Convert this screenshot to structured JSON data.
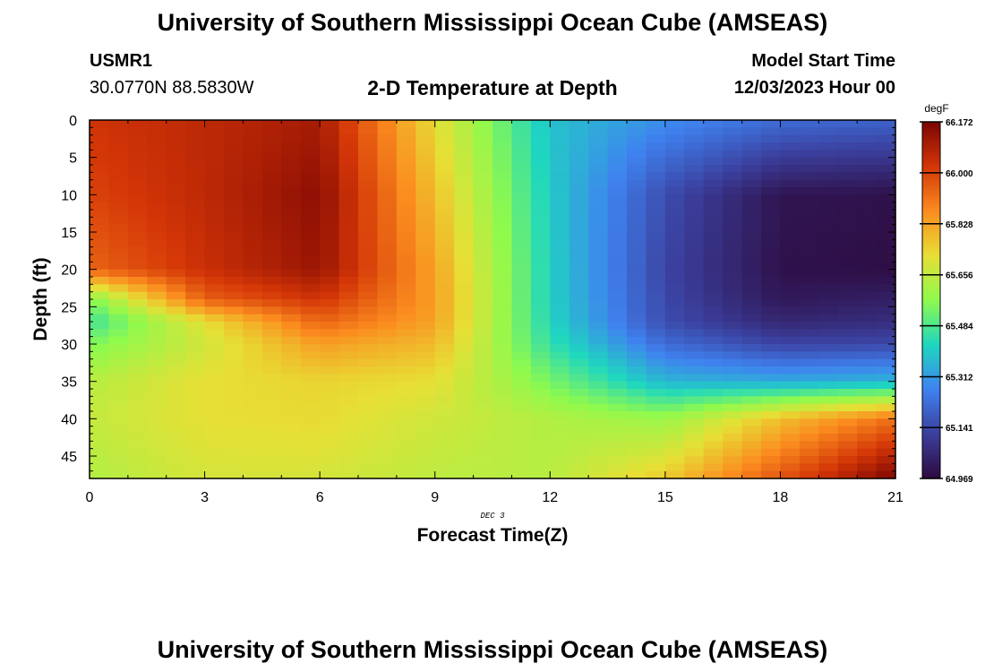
{
  "header": {
    "title": "University of Southern Mississippi Ocean Cube (AMSEAS)",
    "station": "USMR1",
    "coords": "30.0770N  88.5830W",
    "subtitle": "2-D Temperature at Depth",
    "model_start_label": "Model Start Time",
    "model_start_value": "12/03/2023 Hour 00"
  },
  "footer": {
    "title": "University of Southern Mississippi Ocean Cube (AMSEAS)"
  },
  "chart_data": {
    "type": "heatmap",
    "title": "2-D Temperature at Depth",
    "xlabel": "Forecast Time(Z)",
    "ylabel": "Depth (ft)",
    "date_label": "DEC 3",
    "units": "degF",
    "x_ticks": [
      0,
      3,
      6,
      9,
      12,
      15,
      18,
      21
    ],
    "y_ticks": [
      0,
      5,
      10,
      15,
      20,
      25,
      30,
      35,
      40,
      45
    ],
    "xlim": [
      0,
      21
    ],
    "ylim": [
      0,
      48
    ],
    "colorbar_ticks": [
      "66.172",
      "66.000",
      "65.828",
      "65.656",
      "65.484",
      "65.312",
      "65.141",
      "64.969"
    ],
    "vmin": 64.969,
    "vmax": 66.172,
    "colors": [
      "#2d0a3e",
      "#3b3f9d",
      "#3f82f0",
      "#1ed7c0",
      "#8ffa4d",
      "#e7df35",
      "#fb8c1f",
      "#d43607",
      "#7a0403"
    ],
    "x_points": [
      0,
      3,
      6,
      9,
      12,
      15,
      18,
      21
    ],
    "y_points": [
      0,
      10,
      20,
      24,
      27,
      30,
      35,
      40,
      48
    ],
    "values": [
      [
        66.03,
        66.06,
        66.1,
        65.72,
        65.38,
        65.29,
        65.22,
        65.2
      ],
      [
        66.0,
        66.06,
        66.14,
        65.78,
        65.4,
        65.15,
        65.0,
        64.99
      ],
      [
        65.94,
        66.04,
        66.12,
        65.83,
        65.41,
        65.13,
        64.99,
        64.98
      ],
      [
        65.55,
        65.95,
        66.03,
        65.84,
        65.41,
        65.14,
        65.01,
        65.03
      ],
      [
        65.46,
        65.72,
        65.94,
        65.83,
        65.42,
        65.15,
        65.05,
        65.07
      ],
      [
        65.55,
        65.68,
        65.84,
        65.79,
        65.45,
        65.22,
        65.13,
        65.14
      ],
      [
        65.64,
        65.72,
        65.74,
        65.72,
        65.54,
        65.36,
        65.34,
        65.36
      ],
      [
        65.66,
        65.72,
        65.73,
        65.68,
        65.63,
        65.59,
        65.78,
        65.92
      ],
      [
        65.63,
        65.69,
        65.69,
        65.65,
        65.64,
        65.76,
        65.97,
        66.17
      ]
    ]
  }
}
